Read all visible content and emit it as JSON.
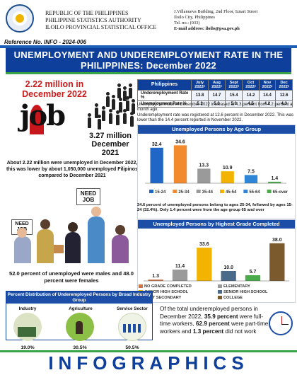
{
  "header": {
    "left_lines": [
      "REPUBLIC OF THE PHILIPPINES",
      "PHILIPPINE STATISTICS AUTHORITY",
      "ILOILO PROVINCIAL STATISTICAL OFFICE"
    ],
    "right_lines": [
      "J.Villanueva Building, 2nd Floor, Iznart Street",
      "Iloilo City, Philippines",
      "Tel. no.: (033)",
      "E-mail address: iloilo@psa.gov.ph"
    ]
  },
  "reference": "Reference No.  INFO - 2024-006",
  "title": "UNEMPLOYMENT AND UNDEREMPLOYMENT RATE IN THE PHILIPPINES: December 2022",
  "unemployed_dec2022": "2.22 million in December 2022",
  "job_word": "job",
  "unemployed_dec2021": "3.27 million December 2021",
  "left_info": "About 2.22 million were unemployed in December 2022, this was lower by about 1,050,000 unemployed Filipinos compared to December  2021",
  "table": {
    "corner": "Philippines",
    "columns": [
      "July 2022ᵖ",
      "Aug 2022ᵖ",
      "Sept 2022ᵖ",
      "Oct 2022ᵖ",
      "Nov 2022ᵖ",
      "Dec 2022ᵖ"
    ],
    "rows": [
      {
        "label": "Underemployment Rate %",
        "values": [
          "13.8",
          "14.7",
          "15.4",
          "14.2",
          "14.4",
          "12.6"
        ]
      },
      {
        "label": "Unemployment Rate %",
        "values": [
          "5.2",
          "5.3",
          "5.0",
          "4.5",
          "4.2",
          "4.3"
        ]
      }
    ]
  },
  "table_note_1": "Unemployment rate in December 2022 increased at 4.3 percent from 4.2 percent a month ago.",
  "table_note_2": "Underemployment rate was registered at 12.6 percent in December 2022. This was lower than the 14.4 percent reported in November 2022.",
  "age_chart_title": "Unemployed Persons by Age Group",
  "age_note": "34.6 percent of unemployed persons belong to ages 25-34, followed by ages 15-24 (32.4%). Only 1.4 percent were from the age group 65 and over",
  "signs": {
    "need_job_1": "NEED JOB",
    "need_job_2": "NEED JOB"
  },
  "gender_text": "52.0 percent of unemployed  were males and 48.0 percent  were females",
  "edu_chart_title": "Unemployed Persons by Highest Grade Completed",
  "industry": {
    "title": "Percent Distribution of Underemployed Persons by Broad Industry Group",
    "sectors": [
      {
        "name": "Industry",
        "pct": "19.0%"
      },
      {
        "name": "Agriculture",
        "pct": "30.5%"
      },
      {
        "name": "Service Sector",
        "pct": "50.5%"
      }
    ]
  },
  "workers_text_parts": [
    "Of the total underemployed persons in December 2022, ",
    "35.9 percent",
    " were full-time workers, ",
    "62.9 percent",
    " were part-time workers and ",
    "1.3 percent",
    " did not work"
  ],
  "footer_word": "INFOGRAPHICS",
  "colors": {
    "navy": "#0e3f9a",
    "blue": "#1c4ea8",
    "red": "#c81d1d",
    "green": "#39a34a"
  },
  "chart_data": [
    {
      "type": "bar",
      "title": "Unemployed Persons by Age Group",
      "categories": [
        "15-24",
        "25-34",
        "35-44",
        "45-54",
        "55-64",
        "65-over"
      ],
      "values": [
        32.4,
        34.6,
        13.3,
        10.9,
        7.5,
        1.4
      ],
      "colors": [
        "#1f66c7",
        "#f28a2e",
        "#9a9a9a",
        "#f2b400",
        "#2f86d6",
        "#4bab4b"
      ],
      "ylim": [
        0,
        40
      ],
      "legend": "bottom"
    },
    {
      "type": "bar",
      "title": "Unemployed Persons by Highest Grade Completed",
      "categories": [
        "NO GRADE COMPLETED",
        "ELEMENTARY",
        "JUNIOR HIGH SCHOOL",
        "SENIOR HIGH SCHOOL",
        "POST SECONDARY",
        "COLLEGE"
      ],
      "values": [
        1.3,
        11.4,
        33.6,
        10.0,
        5.7,
        38.0
      ],
      "colors": [
        "#c9734a",
        "#9a9a9a",
        "#f2b400",
        "#4a6a8a",
        "#4bab4b",
        "#7b5a2e"
      ],
      "ylim": [
        0,
        40
      ],
      "legend": "bottom"
    }
  ]
}
